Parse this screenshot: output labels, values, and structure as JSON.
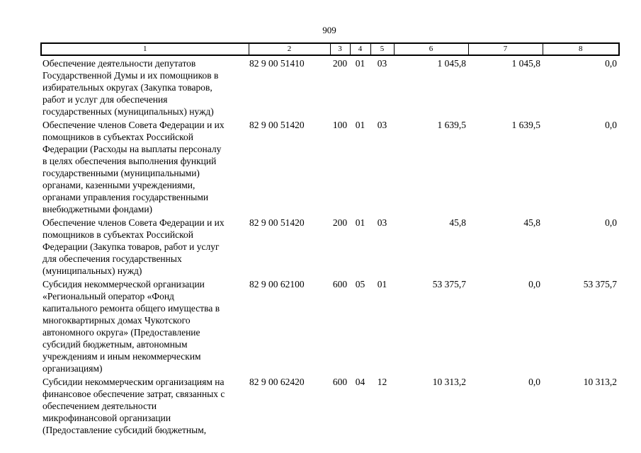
{
  "page": {
    "number": "909"
  },
  "table": {
    "column_headers": [
      "1",
      "2",
      "3",
      "4",
      "5",
      "6",
      "7",
      "8"
    ],
    "rows": [
      {
        "name": "Обеспечение деятельности депутатов\nГосударственной Думы и их помощников в\nизбирательных округах (Закупка товаров,\nработ и услуг для обеспечения\nгосударственных (муниципальных) нужд)",
        "code": "82 9 00 51410",
        "c3": "200",
        "c4": "01",
        "c5": "03",
        "c6": "1 045,8",
        "c7": "1 045,8",
        "c8": "0,0"
      },
      {
        "name": "Обеспечение членов Совета Федерации и их\nпомощников в субъектах Российской\nФедерации (Расходы на выплаты персоналу\nв целях обеспечения выполнения функций\nгосударственными (муниципальными)\nорганами, казенными учреждениями,\nорганами управления государственными\nвнебюджетными фондами)",
        "code": "82 9 00 51420",
        "c3": "100",
        "c4": "01",
        "c5": "03",
        "c6": "1 639,5",
        "c7": "1 639,5",
        "c8": "0,0"
      },
      {
        "name": "Обеспечение членов Совета Федерации и их\nпомощников в субъектах Российской\nФедерации (Закупка товаров, работ и услуг\nдля обеспечения государственных\n(муниципальных) нужд)",
        "code": "82 9 00 51420",
        "c3": "200",
        "c4": "01",
        "c5": "03",
        "c6": "45,8",
        "c7": "45,8",
        "c8": "0,0"
      },
      {
        "name": "Субсидия некоммерческой организации\n«Региональный оператор «Фонд\nкапитального ремонта общего имущества в\nмногоквартирных домах Чукотского\nавтономного округа» (Предоставление\nсубсидий бюджетным, автономным\nучреждениям и иным некоммерческим\nорганизациям)",
        "code": "82 9 00 62100",
        "c3": "600",
        "c4": "05",
        "c5": "01",
        "c6": "53 375,7",
        "c7": "0,0",
        "c8": "53 375,7"
      },
      {
        "name": "Субсидии некоммерческим организациям на\nфинансовое обеспечение затрат, связанных с\nобеспечением деятельности\nмикрофинансовой организации\n(Предоставление субсидий бюджетным,",
        "code": "82 9 00 62420",
        "c3": "600",
        "c4": "04",
        "c5": "12",
        "c6": "10 313,2",
        "c7": "0,0",
        "c8": "10 313,2"
      }
    ]
  }
}
